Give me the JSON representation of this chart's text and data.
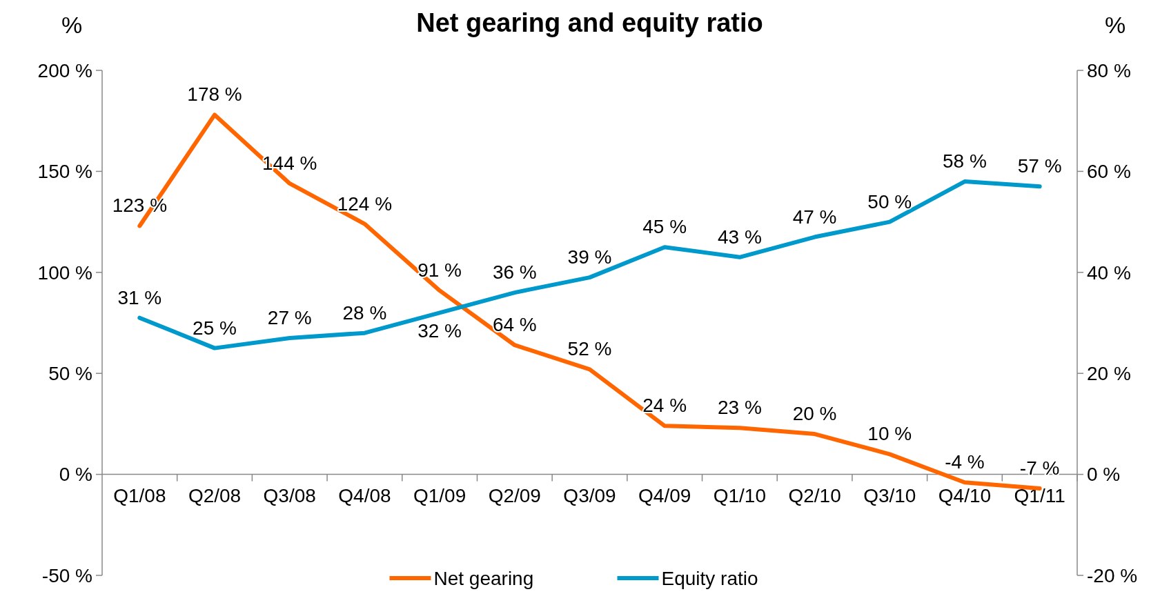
{
  "chart_data": {
    "type": "line",
    "title": "Net gearing and equity ratio",
    "ylabel": "%",
    "y2label": "%",
    "categories": [
      "Q1/08",
      "Q2/08",
      "Q3/08",
      "Q4/08",
      "Q1/09",
      "Q2/09",
      "Q3/09",
      "Q4/09",
      "Q1/10",
      "Q2/10",
      "Q3/10",
      "Q4/10",
      "Q1/11"
    ],
    "series": [
      {
        "name": "Net gearing",
        "color": "#ff6600",
        "values": [
          123,
          178,
          144,
          124,
          91,
          64,
          52,
          24,
          23,
          20,
          10,
          -4,
          -7
        ],
        "value_labels": [
          "123 %",
          "178 %",
          "144 %",
          "124 %",
          "91 %",
          "64 %",
          "52 %",
          "24 %",
          "23 %",
          "20 %",
          "10 %",
          "-4 %",
          "-7 %"
        ]
      },
      {
        "name": "Equity ratio",
        "color": "#0099cc",
        "axis": "y2",
        "values": [
          31,
          25,
          27,
          28,
          32,
          36,
          39,
          45,
          43,
          47,
          50,
          58,
          57
        ],
        "value_labels": [
          "31 %",
          "25 %",
          "27 %",
          "28 %",
          "32 %",
          "36 %",
          "39 %",
          "45 %",
          "43 %",
          "47 %",
          "50 %",
          "58 %",
          "57 %"
        ]
      }
    ],
    "ylim": [
      -50,
      200
    ],
    "yticks": [
      {
        "value": -50,
        "label": "-50 %"
      },
      {
        "value": 0,
        "label": "0 %"
      },
      {
        "value": 50,
        "label": "50 %"
      },
      {
        "value": 100,
        "label": "100 %"
      },
      {
        "value": 150,
        "label": "150 %"
      },
      {
        "value": 200,
        "label": "200 %"
      }
    ],
    "y2lim": [
      -20,
      80
    ],
    "y2ticks": [
      {
        "value": -20,
        "label": "-20 %"
      },
      {
        "value": 0,
        "label": "0 %"
      },
      {
        "value": 20,
        "label": "20 %"
      },
      {
        "value": 40,
        "label": "40 %"
      },
      {
        "value": 60,
        "label": "60 %"
      },
      {
        "value": 80,
        "label": "80 %"
      }
    ],
    "legend": "bottom",
    "grid": false,
    "marker": "none",
    "line_style": "solid"
  }
}
